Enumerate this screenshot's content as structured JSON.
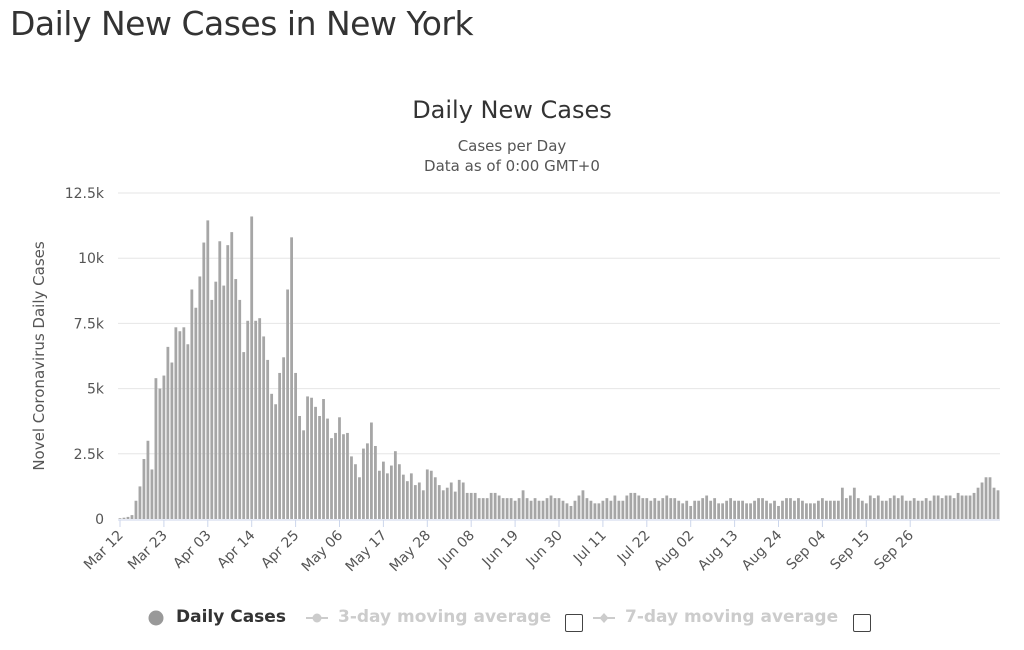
{
  "page": {
    "title": "Daily New Cases in New York"
  },
  "chart_data": {
    "type": "bar",
    "title": "Daily New Cases",
    "subtitle_lines": [
      "Cases per Day",
      "Data as of 0:00 GMT+0"
    ],
    "xlabel": "",
    "ylabel": "Novel Coronavirus Daily Cases",
    "ylim": [
      0,
      12500
    ],
    "yticks": [
      0,
      2500,
      5000,
      7500,
      10000,
      12500
    ],
    "ytick_labels": [
      "0",
      "2.5k",
      "5k",
      "7.5k",
      "10k",
      "12.5k"
    ],
    "x_tick_labels": [
      "Mar 12",
      "Mar 23",
      "Apr 03",
      "Apr 14",
      "Apr 25",
      "May 06",
      "May 17",
      "May 28",
      "Jun 08",
      "Jun 19",
      "Jun 30",
      "Jul 11",
      "Jul 22",
      "Aug 02",
      "Aug 13",
      "Aug 24",
      "Sep 04",
      "Sep 15",
      "Sep 26"
    ],
    "x_tick_every_days": 11,
    "grid": true,
    "legend_position": "bottom",
    "bar_color": "#a6a6a6",
    "series": [
      {
        "name": "Daily Cases",
        "start_label": "Mar 12",
        "values": [
          30,
          50,
          80,
          150,
          700,
          1250,
          2300,
          3000,
          1900,
          5400,
          5000,
          5500,
          6600,
          6000,
          7350,
          7200,
          7350,
          6700,
          8800,
          8100,
          9300,
          10600,
          11450,
          8400,
          9100,
          10650,
          8950,
          10500,
          11000,
          9200,
          8400,
          6400,
          7600,
          11600,
          7600,
          7700,
          7000,
          6100,
          4800,
          4400,
          5600,
          6200,
          8800,
          10800,
          5600,
          3950,
          3400,
          4700,
          4650,
          4300,
          3950,
          4600,
          3850,
          3100,
          3300,
          3900,
          3250,
          3300,
          2400,
          2100,
          1600,
          2700,
          2900,
          3700,
          2800,
          1850,
          2200,
          1750,
          2050,
          2600,
          2100,
          1700,
          1450,
          1750,
          1300,
          1400,
          1100,
          1900,
          1850,
          1600,
          1300,
          1100,
          1200,
          1400,
          1050,
          1500,
          1400,
          1000,
          1000,
          1000,
          800,
          800,
          800,
          1000,
          1000,
          900,
          800,
          800,
          800,
          700,
          800,
          1100,
          800,
          700,
          800,
          700,
          700,
          800,
          900,
          800,
          800,
          700,
          600,
          500,
          700,
          900,
          1100,
          800,
          700,
          600,
          600,
          700,
          800,
          700,
          900,
          700,
          700,
          900,
          1000,
          1000,
          900,
          800,
          800,
          700,
          800,
          700,
          800,
          900,
          800,
          800,
          700,
          600,
          700,
          500,
          700,
          700,
          800,
          900,
          700,
          800,
          600,
          600,
          700,
          800,
          700,
          700,
          700,
          600,
          600,
          700,
          800,
          800,
          700,
          600,
          700,
          500,
          700,
          800,
          800,
          700,
          800,
          700,
          600,
          600,
          600,
          700,
          800,
          700,
          700,
          700,
          700,
          1200,
          800,
          900,
          1200,
          800,
          700,
          600,
          900,
          800,
          900,
          700,
          700,
          800,
          900,
          800,
          900,
          700,
          700,
          800,
          700,
          700,
          800,
          700,
          900,
          900,
          800,
          900,
          900,
          800,
          1000,
          900,
          900,
          900,
          1000,
          1200,
          1400,
          1600,
          1600,
          1200,
          1100
        ]
      },
      {
        "name": "3-day moving average",
        "visible": false
      },
      {
        "name": "7-day moving average",
        "visible": false
      }
    ]
  },
  "legend": {
    "daily_label": "Daily Cases",
    "ma3_label": "3-day moving average",
    "ma7_label": "7-day moving average",
    "active_color": "#999999",
    "inactive_color": "#cccccc"
  }
}
